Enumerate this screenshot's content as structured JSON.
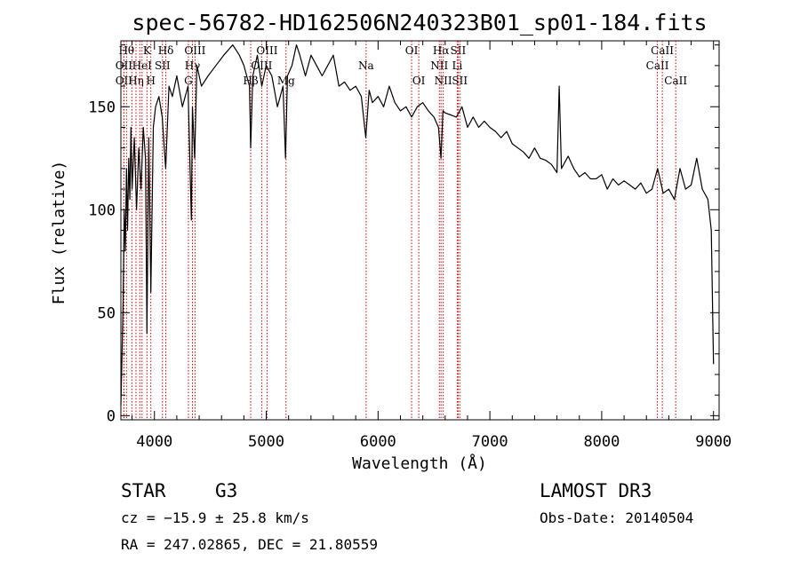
{
  "chart_data": {
    "type": "line",
    "title": "spec-56782-HD162506N240323B01_sp01-184.fits",
    "xlabel": "Wavelength (Å)",
    "ylabel": "Flux (relative)",
    "xlim": [
      3700,
      9050
    ],
    "ylim": [
      -2,
      182
    ],
    "x_ticks": [
      4000,
      5000,
      6000,
      7000,
      8000,
      9000
    ],
    "y_ticks": [
      0,
      50,
      100,
      150
    ],
    "series": [
      {
        "name": "flux",
        "x": [
          3700,
          3710,
          3720,
          3730,
          3740,
          3750,
          3760,
          3770,
          3780,
          3790,
          3800,
          3820,
          3840,
          3860,
          3880,
          3900,
          3920,
          3933,
          3950,
          3968,
          3990,
          4010,
          4040,
          4070,
          4101,
          4130,
          4160,
          4200,
          4250,
          4300,
          4330,
          4340,
          4360,
          4380,
          4420,
          4480,
          4550,
          4620,
          4700,
          4760,
          4800,
          4850,
          4861,
          4880,
          4920,
          4960,
          5000,
          5050,
          5100,
          5150,
          5172,
          5190,
          5230,
          5270,
          5300,
          5350,
          5400,
          5450,
          5500,
          5550,
          5600,
          5650,
          5700,
          5750,
          5800,
          5850,
          5890,
          5920,
          5950,
          6000,
          6050,
          6100,
          6150,
          6200,
          6250,
          6300,
          6350,
          6400,
          6450,
          6500,
          6540,
          6563,
          6580,
          6600,
          6650,
          6700,
          6750,
          6800,
          6850,
          6900,
          6950,
          7000,
          7050,
          7100,
          7150,
          7200,
          7250,
          7300,
          7350,
          7400,
          7450,
          7500,
          7550,
          7600,
          7620,
          7640,
          7700,
          7750,
          7800,
          7850,
          7900,
          7950,
          8000,
          8050,
          8100,
          8150,
          8200,
          8250,
          8300,
          8350,
          8400,
          8450,
          8500,
          8550,
          8600,
          8650,
          8700,
          8750,
          8800,
          8850,
          8900,
          8950,
          8980,
          9000
        ],
        "y": [
          5,
          30,
          55,
          100,
          80,
          120,
          90,
          125,
          105,
          140,
          110,
          135,
          100,
          130,
          110,
          140,
          125,
          40,
          135,
          60,
          140,
          150,
          155,
          145,
          120,
          160,
          155,
          165,
          150,
          160,
          95,
          150,
          125,
          170,
          160,
          165,
          170,
          175,
          180,
          175,
          170,
          160,
          130,
          165,
          175,
          160,
          170,
          165,
          150,
          160,
          125,
          165,
          170,
          180,
          175,
          165,
          175,
          170,
          165,
          170,
          175,
          160,
          162,
          158,
          160,
          155,
          135,
          158,
          152,
          155,
          150,
          160,
          152,
          148,
          150,
          145,
          150,
          152,
          148,
          145,
          140,
          125,
          148,
          147,
          146,
          145,
          150,
          140,
          145,
          140,
          143,
          140,
          138,
          135,
          138,
          132,
          130,
          128,
          125,
          130,
          125,
          124,
          122,
          118,
          160,
          120,
          126,
          120,
          116,
          118,
          115,
          115,
          117,
          110,
          115,
          112,
          114,
          112,
          110,
          113,
          108,
          110,
          120,
          108,
          110,
          105,
          120,
          110,
          112,
          125,
          110,
          105,
          90,
          25
        ]
      }
    ],
    "lines": [
      {
        "wl": 3750,
        "label": "Hθ",
        "row": 1
      },
      {
        "wl": 3727,
        "label": "OII",
        "row": 2
      },
      {
        "wl": 3727,
        "label": "OII",
        "row": 3
      },
      {
        "wl": 3798,
        "label": "",
        "row": 0
      },
      {
        "wl": 3835,
        "label": "Hη",
        "row": 3
      },
      {
        "wl": 3869,
        "label": "",
        "row": 0
      },
      {
        "wl": 3889,
        "label": "HeI",
        "row": 2
      },
      {
        "wl": 3933,
        "label": "K",
        "row": 1
      },
      {
        "wl": 3968,
        "label": "H",
        "row": 3
      },
      {
        "wl": 4072,
        "label": "SII",
        "row": 2
      },
      {
        "wl": 4102,
        "label": "Hδ",
        "row": 1
      },
      {
        "wl": 4304,
        "label": "G",
        "row": 3
      },
      {
        "wl": 4340,
        "label": "Hγ",
        "row": 2
      },
      {
        "wl": 4363,
        "label": "OIII",
        "row": 1
      },
      {
        "wl": 4861,
        "label": "Hβ",
        "row": 3
      },
      {
        "wl": 4959,
        "label": "OIII",
        "row": 2
      },
      {
        "wl": 5007,
        "label": "OIII",
        "row": 1
      },
      {
        "wl": 5177,
        "label": "Mg",
        "row": 3
      },
      {
        "wl": 5893,
        "label": "Na",
        "row": 2
      },
      {
        "wl": 6300,
        "label": "OI",
        "row": 1
      },
      {
        "wl": 6364,
        "label": "OI",
        "row": 3
      },
      {
        "wl": 6548,
        "label": "NII",
        "row": 2
      },
      {
        "wl": 6563,
        "label": "Hα",
        "row": 1
      },
      {
        "wl": 6583,
        "label": "NII",
        "row": 3
      },
      {
        "wl": 6708,
        "label": "Li",
        "row": 2
      },
      {
        "wl": 6716,
        "label": "SII",
        "row": 1
      },
      {
        "wl": 6731,
        "label": "SII",
        "row": 3
      },
      {
        "wl": 8498,
        "label": "CaII",
        "row": 2
      },
      {
        "wl": 8542,
        "label": "CaII",
        "row": 1
      },
      {
        "wl": 8662,
        "label": "CaII",
        "row": 3
      }
    ],
    "line_color": "#cc0000",
    "curve_color": "#000000"
  },
  "info": {
    "object_class": "STAR",
    "subclass": "G3",
    "survey": "LAMOST DR3",
    "cz": "cz = −15.9 ± 25.8 km/s",
    "obs_date": "Obs-Date: 20140504",
    "coords": "RA = 247.02865, DEC =  21.80559"
  }
}
